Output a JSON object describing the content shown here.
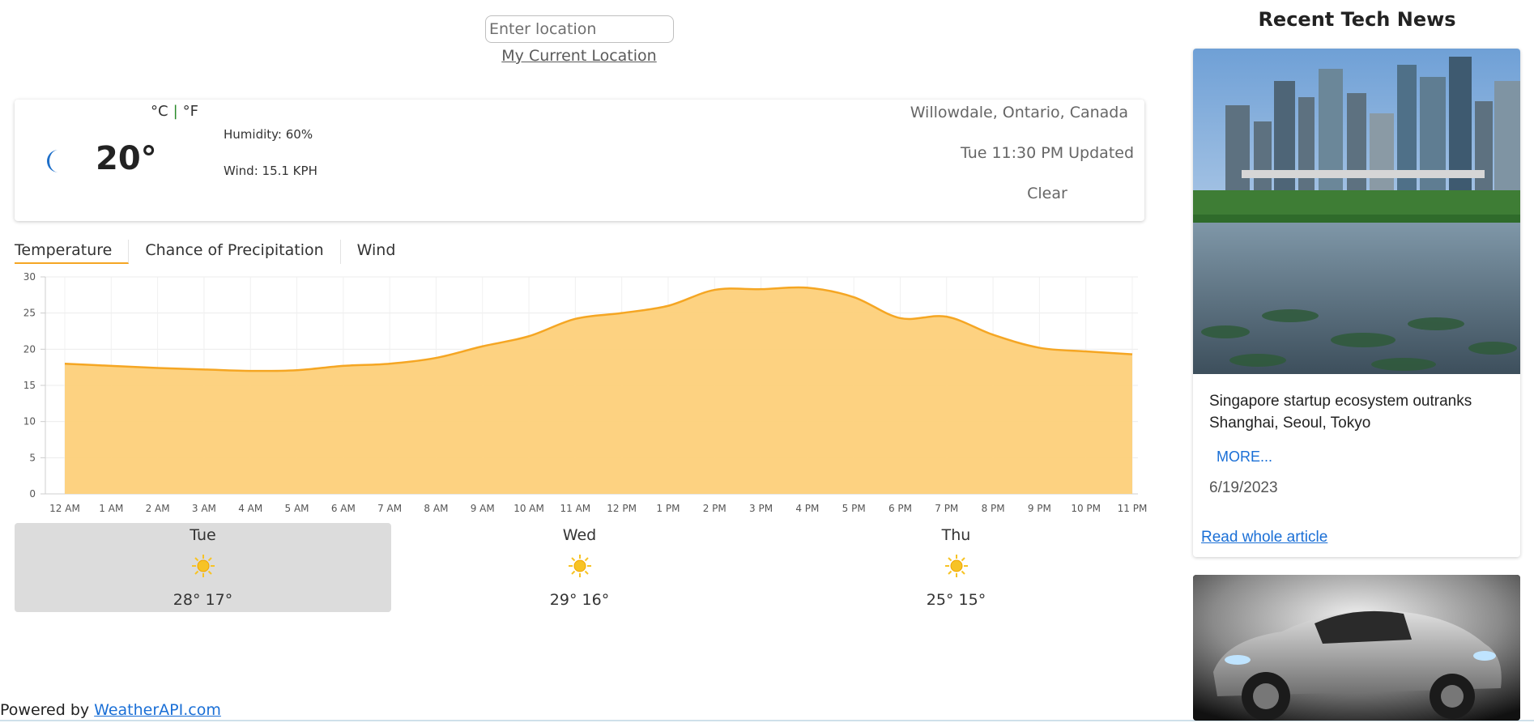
{
  "search": {
    "placeholder": "Enter location",
    "current_location_label": "My Current Location"
  },
  "current": {
    "temperature": "20°",
    "unit_c": "°C",
    "unit_f": "°F",
    "separator": "|",
    "humidity": "Humidity: 60%",
    "wind": "Wind: 15.1 KPH",
    "location": "Willowdale, Ontario, Canada",
    "updated": "Tue 11:30 PM Updated",
    "condition": "Clear",
    "icon": "moon-icon"
  },
  "tabs": [
    {
      "label": "Temperature",
      "active": true
    },
    {
      "label": "Chance of Precipitation",
      "active": false
    },
    {
      "label": "Wind",
      "active": false
    }
  ],
  "chart_data": {
    "type": "area",
    "x": [
      "12 AM",
      "1 AM",
      "2 AM",
      "3 AM",
      "4 AM",
      "5 AM",
      "6 AM",
      "7 AM",
      "8 AM",
      "9 AM",
      "10 AM",
      "11 AM",
      "12 PM",
      "1 PM",
      "2 PM",
      "3 PM",
      "4 PM",
      "5 PM",
      "6 PM",
      "7 PM",
      "8 PM",
      "9 PM",
      "10 PM",
      "11 PM"
    ],
    "series": [
      {
        "values": [
          18,
          17.7,
          17.4,
          17.2,
          17,
          17.1,
          17.7,
          18,
          18.8,
          20.4,
          21.8,
          24.2,
          25,
          26,
          28.2,
          28.3,
          28.5,
          27.2,
          24.3,
          24.5,
          22,
          20.2,
          19.7,
          19.3
        ]
      }
    ],
    "ylim": [
      0,
      30
    ],
    "yticks": [
      "0",
      "5",
      "10",
      "15",
      "20",
      "25",
      "30"
    ],
    "line_color": "#f5a623",
    "fill_color": "#fdd07a",
    "grid": true
  },
  "forecast": [
    {
      "day": "Tue",
      "temps": "28° 17°",
      "icon": "sun-icon",
      "selected": true
    },
    {
      "day": "Wed",
      "temps": "29° 16°",
      "icon": "sun-icon",
      "selected": false
    },
    {
      "day": "Thu",
      "temps": "25° 15°",
      "icon": "sun-icon",
      "selected": false
    }
  ],
  "footer": {
    "prefix": "Powered by ",
    "link": "WeatherAPI.com"
  },
  "news": {
    "title": "Recent Tech News",
    "articles": [
      {
        "headline": "Singapore startup ecosystem outranks Shanghai, Seoul, Tokyo",
        "more": "MORE...",
        "date": "6/19/2023",
        "read_link": "Read whole article",
        "image": "city-skyline-image"
      },
      {
        "image": "sports-car-image"
      }
    ]
  },
  "colors": {
    "accent": "#f5a623",
    "link": "#1a6fd6",
    "moon": "#1e6fc9",
    "sun": "#f7c325"
  }
}
